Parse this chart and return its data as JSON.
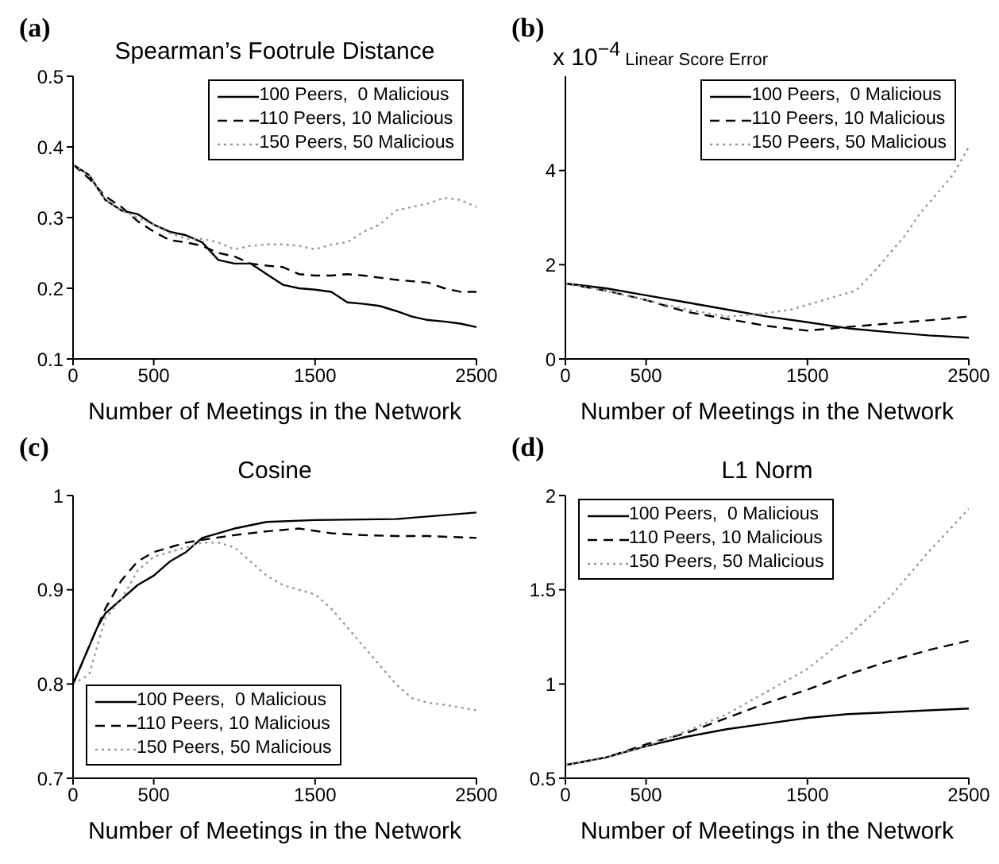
{
  "chart_data": [
    {
      "type": "line",
      "title": "Spearman’s Footrule Distance",
      "xlabel": "Number of Meetings in the Network",
      "annotations": [
        "(a)"
      ],
      "xlim": [
        0,
        2500
      ],
      "xticks": [
        0,
        500,
        1500,
        2500
      ],
      "ylim": [
        0.1,
        0.5
      ],
      "yticks": [
        0.1,
        0.2,
        0.3,
        0.4,
        0.5
      ],
      "grid": false,
      "legend": "top right",
      "series": [
        {
          "name": "100 Peers,  0 Malicious",
          "color": "#000000",
          "line_style": "solid",
          "x": [
            0,
            100,
            200,
            300,
            400,
            500,
            600,
            700,
            800,
            900,
            1000,
            1100,
            1200,
            1300,
            1400,
            1500,
            1600,
            1700,
            1800,
            1900,
            2000,
            2100,
            2200,
            2300,
            2400,
            2500
          ],
          "values": [
            0.375,
            0.36,
            0.325,
            0.31,
            0.305,
            0.29,
            0.28,
            0.275,
            0.265,
            0.24,
            0.235,
            0.235,
            0.22,
            0.205,
            0.2,
            0.198,
            0.195,
            0.18,
            0.178,
            0.175,
            0.168,
            0.16,
            0.155,
            0.153,
            0.15,
            0.145
          ]
        },
        {
          "name": "110 Peers, 10 Malicious",
          "color": "#000000",
          "line_style": "dashed",
          "x": [
            0,
            100,
            200,
            300,
            400,
            500,
            600,
            700,
            800,
            900,
            1000,
            1100,
            1200,
            1300,
            1400,
            1500,
            1600,
            1700,
            1800,
            1900,
            2000,
            2100,
            2200,
            2300,
            2400,
            2500
          ],
          "values": [
            0.375,
            0.355,
            0.33,
            0.315,
            0.295,
            0.28,
            0.268,
            0.265,
            0.26,
            0.25,
            0.245,
            0.235,
            0.232,
            0.23,
            0.22,
            0.218,
            0.218,
            0.22,
            0.218,
            0.215,
            0.212,
            0.21,
            0.208,
            0.2,
            0.195,
            0.195
          ]
        },
        {
          "name": "150 Peers, 50 Malicious",
          "color": "#999999",
          "line_style": "dotted",
          "x": [
            0,
            100,
            200,
            300,
            400,
            500,
            600,
            700,
            800,
            900,
            1000,
            1100,
            1200,
            1300,
            1400,
            1500,
            1600,
            1700,
            1800,
            1900,
            2000,
            2100,
            2200,
            2300,
            2400,
            2500
          ],
          "values": [
            0.375,
            0.36,
            0.325,
            0.31,
            0.3,
            0.29,
            0.278,
            0.27,
            0.27,
            0.265,
            0.255,
            0.26,
            0.262,
            0.262,
            0.26,
            0.255,
            0.262,
            0.265,
            0.28,
            0.29,
            0.31,
            0.315,
            0.32,
            0.328,
            0.325,
            0.315
          ]
        }
      ]
    },
    {
      "type": "line",
      "title": "Linear Score Error",
      "xlabel": "Number of Meetings in the Network",
      "annotations": [
        "(b)",
        "x 10$^{−4}$"
      ],
      "xlim": [
        0,
        2500
      ],
      "xticks": [
        0,
        500,
        1500,
        2500
      ],
      "ylim": [
        0,
        6
      ],
      "yticks": [
        0,
        2,
        4
      ],
      "grid": false,
      "legend": "top right",
      "series": [
        {
          "name": "100 Peers,  0 Malicious",
          "color": "#000000",
          "line_style": "solid",
          "x": [
            0,
            250,
            500,
            750,
            1000,
            1250,
            1500,
            1750,
            2000,
            2250,
            2500
          ],
          "values": [
            1.6,
            1.5,
            1.35,
            1.2,
            1.05,
            0.9,
            0.78,
            0.65,
            0.57,
            0.5,
            0.45
          ]
        },
        {
          "name": "110 Peers, 10 Malicious",
          "color": "#000000",
          "line_style": "dashed",
          "x": [
            0,
            250,
            500,
            750,
            1000,
            1250,
            1500,
            1750,
            2000,
            2250,
            2500
          ],
          "values": [
            1.6,
            1.45,
            1.25,
            1.0,
            0.85,
            0.7,
            0.6,
            0.68,
            0.75,
            0.82,
            0.9
          ]
        },
        {
          "name": "150 Peers, 50 Malicious",
          "color": "#999999",
          "line_style": "dotted",
          "x": [
            0,
            250,
            500,
            750,
            1000,
            1200,
            1400,
            1600,
            1800,
            1900,
            2000,
            2100,
            2200,
            2300,
            2400,
            2500
          ],
          "values": [
            1.6,
            1.45,
            1.25,
            1.05,
            0.9,
            0.95,
            1.05,
            1.25,
            1.45,
            1.8,
            2.2,
            2.6,
            3.1,
            3.5,
            3.9,
            4.5
          ]
        }
      ]
    },
    {
      "type": "line",
      "title": "Cosine",
      "xlabel": "Number of Meetings in the Network",
      "annotations": [
        "(c)"
      ],
      "xlim": [
        0,
        2500
      ],
      "xticks": [
        0,
        500,
        1500,
        2500
      ],
      "ylim": [
        0.7,
        1
      ],
      "yticks": [
        0.7,
        0.8,
        0.9,
        1
      ],
      "grid": false,
      "legend": "bottom left",
      "series": [
        {
          "name": "100 Peers,  0 Malicious",
          "color": "#000000",
          "line_style": "solid",
          "x": [
            0,
            50,
            100,
            150,
            200,
            300,
            400,
            500,
            600,
            700,
            800,
            1000,
            1200,
            1500,
            2000,
            2500
          ],
          "values": [
            0.8,
            0.82,
            0.84,
            0.86,
            0.875,
            0.89,
            0.905,
            0.915,
            0.93,
            0.94,
            0.955,
            0.965,
            0.972,
            0.974,
            0.975,
            0.982
          ]
        },
        {
          "name": "110 Peers, 10 Malicious",
          "color": "#000000",
          "line_style": "dashed",
          "x": [
            0,
            100,
            200,
            300,
            400,
            500,
            600,
            700,
            800,
            1000,
            1200,
            1400,
            1600,
            1800,
            2000,
            2200,
            2500
          ],
          "values": [
            0.8,
            0.84,
            0.88,
            0.91,
            0.93,
            0.94,
            0.945,
            0.95,
            0.953,
            0.958,
            0.962,
            0.965,
            0.96,
            0.958,
            0.957,
            0.957,
            0.955
          ]
        },
        {
          "name": "150 Peers, 50 Malicious",
          "color": "#999999",
          "line_style": "dotted",
          "x": [
            0,
            100,
            150,
            200,
            300,
            400,
            500,
            600,
            700,
            800,
            900,
            1000,
            1100,
            1200,
            1300,
            1500,
            1600,
            1700,
            1800,
            1900,
            2000,
            2100,
            2200,
            2300,
            2400,
            2500
          ],
          "values": [
            0.8,
            0.81,
            0.84,
            0.87,
            0.89,
            0.92,
            0.935,
            0.94,
            0.945,
            0.95,
            0.95,
            0.945,
            0.93,
            0.915,
            0.905,
            0.895,
            0.88,
            0.86,
            0.84,
            0.82,
            0.8,
            0.785,
            0.78,
            0.778,
            0.775,
            0.772
          ]
        }
      ]
    },
    {
      "type": "line",
      "title": "L1 Norm",
      "xlabel": "Number of Meetings in the Network",
      "annotations": [
        "(d)"
      ],
      "xlim": [
        0,
        2500
      ],
      "xticks": [
        0,
        500,
        1500,
        2500
      ],
      "ylim": [
        0.5,
        2
      ],
      "yticks": [
        0.5,
        1,
        1.5,
        2
      ],
      "grid": false,
      "legend": "top left",
      "series": [
        {
          "name": "100 Peers,  0 Malicious",
          "color": "#000000",
          "line_style": "solid",
          "x": [
            0,
            250,
            500,
            750,
            1000,
            1250,
            1500,
            1750,
            2000,
            2250,
            2500
          ],
          "values": [
            0.57,
            0.61,
            0.67,
            0.72,
            0.76,
            0.79,
            0.82,
            0.84,
            0.85,
            0.86,
            0.87
          ]
        },
        {
          "name": "110 Peers, 10 Malicious",
          "color": "#000000",
          "line_style": "dashed",
          "x": [
            0,
            250,
            500,
            750,
            1000,
            1250,
            1500,
            1750,
            2000,
            2250,
            2500
          ],
          "values": [
            0.57,
            0.61,
            0.68,
            0.74,
            0.82,
            0.9,
            0.97,
            1.05,
            1.12,
            1.18,
            1.23
          ]
        },
        {
          "name": "150 Peers, 50 Malicious",
          "color": "#999999",
          "line_style": "dotted",
          "x": [
            0,
            250,
            500,
            750,
            1000,
            1250,
            1500,
            1750,
            2000,
            2250,
            2500
          ],
          "values": [
            0.57,
            0.61,
            0.67,
            0.75,
            0.84,
            0.96,
            1.08,
            1.25,
            1.45,
            1.7,
            1.93
          ]
        }
      ]
    }
  ]
}
